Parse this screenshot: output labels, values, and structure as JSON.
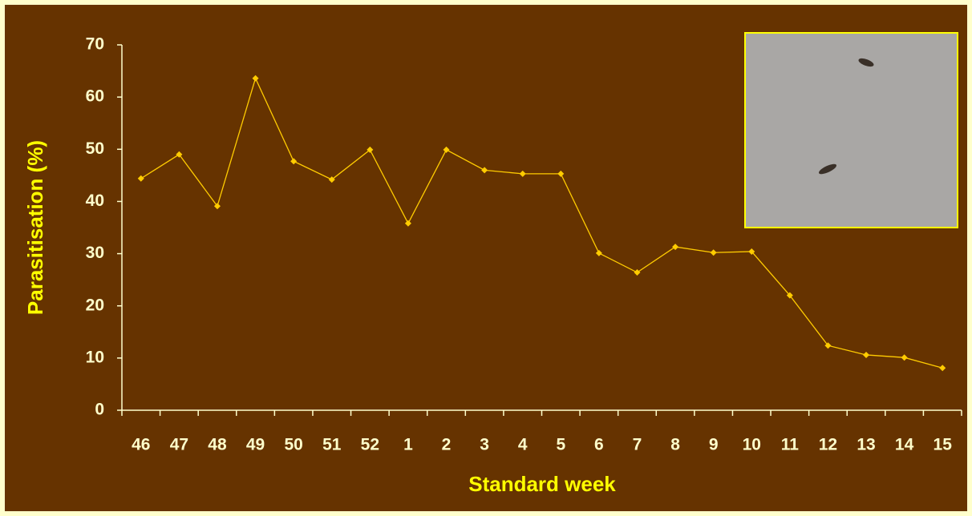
{
  "chart_data": {
    "type": "line",
    "x_label": "Standard  week",
    "y_label": "Parasitisation (%)",
    "categories": [
      "46",
      "47",
      "48",
      "49",
      "50",
      "51",
      "52",
      "1",
      "2",
      "3",
      "4",
      "5",
      "6",
      "7",
      "8",
      "9",
      "10",
      "11",
      "12",
      "13",
      "14",
      "15"
    ],
    "values": [
      44.4,
      49,
      39.1,
      63.6,
      47.7,
      44.2,
      49.9,
      35.8,
      49.9,
      46,
      45.3,
      45.3,
      30.1,
      26.4,
      31.3,
      30.2,
      30.4,
      22,
      12.4,
      10.6,
      10.1,
      8.1
    ],
    "color": "#ffcc00",
    "ylim": [
      0,
      70
    ],
    "yticks": [
      0,
      10,
      20,
      30,
      40,
      50,
      60,
      70
    ],
    "grid": false
  }
}
